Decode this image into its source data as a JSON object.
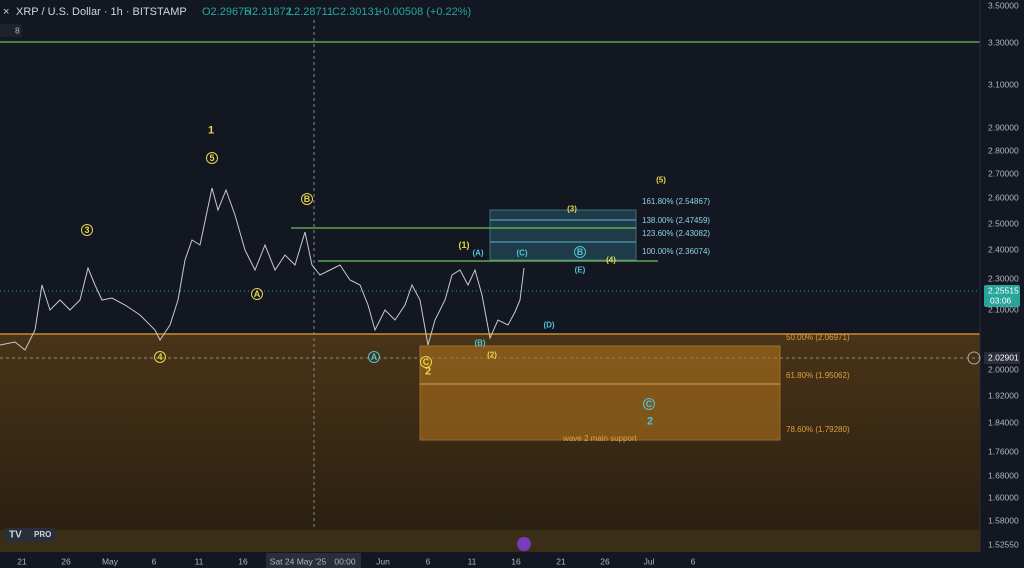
{
  "header": {
    "symbol": "XRP / U.S. Dollar · 1h · BITSTAMP",
    "open": "O2.29675",
    "high": "H2.31872",
    "low": "L2.28711",
    "close": "C2.30131",
    "change": "+0.00508 (+0.22%)",
    "interval_count": "8",
    "logo": "PRO"
  },
  "price_axis": [
    "3.50000",
    "3.30000",
    "3.10000",
    "2.90000",
    "2.80000",
    "2.70000",
    "2.60000",
    "2.50000",
    "2.40000",
    "2.30000",
    "2.10000",
    "2.00000",
    "1.92000",
    "1.84000",
    "1.76000",
    "1.68000",
    "1.60000",
    "1.58000",
    "1.52550"
  ],
  "price_badges": {
    "current": "2.25515",
    "countdown": "03:06",
    "crosshair": "2.02901"
  },
  "time_axis": [
    "21",
    "26",
    "May",
    "6",
    "11",
    "16",
    "Sat 24 May '25",
    "00:00",
    "Jun",
    "6",
    "11",
    "16",
    "21",
    "26",
    "Jul",
    "6"
  ],
  "fib_levels": [
    "161.80% (2.54867)",
    "138.00% (2.47459)",
    "123.60% (2.43082)",
    "100.00% (2.36074)",
    "50.00% (2.06971)",
    "61.80% (1.95062)",
    "78.60% (1.79280)"
  ],
  "support_label": "wave 2 main support",
  "wave_labels": [
    "1",
    "5",
    "3",
    "4",
    "B",
    "A",
    "A",
    "C",
    "2",
    "(1)",
    "(A)",
    "(C)",
    "(B)",
    "(2)",
    "B",
    "(E)",
    "(4)",
    "(3)",
    "(5)",
    "(D)",
    "C",
    "2"
  ]
}
